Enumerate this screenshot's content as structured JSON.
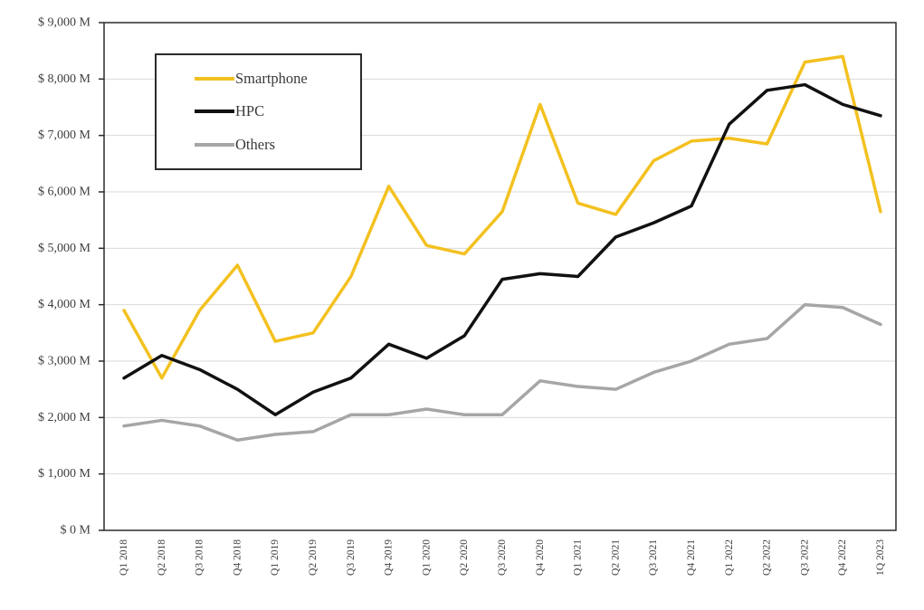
{
  "chart_data": {
    "type": "line",
    "title": "",
    "xlabel": "",
    "ylabel": "",
    "grid": "horizontal",
    "legend_position": "inside-top-left",
    "categories": [
      "Q1 2018",
      "Q2 2018",
      "Q3 2018",
      "Q4 2018",
      "Q1 2019",
      "Q2 2019",
      "Q3 2019",
      "Q4 2019",
      "Q1 2020",
      "Q2 2020",
      "Q3 2020",
      "Q4 2020",
      "Q1 2021",
      "Q2 2021",
      "Q3 2021",
      "Q4 2021",
      "Q1 2022",
      "Q2 2022",
      "Q3 2022",
      "Q4 2022",
      "1Q 2023"
    ],
    "series": [
      {
        "name": "Smartphone",
        "color": "#F3C120",
        "values": [
          3900,
          2700,
          3900,
          4700,
          3350,
          3500,
          4500,
          6100,
          5050,
          4900,
          5650,
          7550,
          5800,
          5600,
          6550,
          6900,
          6950,
          6850,
          8300,
          8400,
          5650
        ]
      },
      {
        "name": "HPC",
        "color": "#111111",
        "values": [
          2700,
          3100,
          2850,
          2500,
          2050,
          2450,
          2700,
          3300,
          3050,
          3450,
          4450,
          4550,
          4500,
          5200,
          5450,
          5750,
          7200,
          7800,
          7900,
          7550,
          7350
        ]
      },
      {
        "name": "Others",
        "color": "#A6A6A6",
        "values": [
          1850,
          1950,
          1850,
          1600,
          1700,
          1750,
          2050,
          2050,
          2150,
          2050,
          2050,
          2650,
          2550,
          2500,
          2800,
          3000,
          3300,
          3400,
          4000,
          3950,
          3650
        ]
      }
    ],
    "y_axis": {
      "min": 0,
      "max": 9000,
      "step": 1000,
      "unit": "M",
      "tick_labels": [
        "$ 0 M",
        "$ 1,000 M",
        "$ 2,000 M",
        "$ 3,000 M",
        "$ 4,000 M",
        "$ 5,000 M",
        "$ 6,000 M",
        "$ 7,000 M",
        "$ 8,000 M",
        "$ 9,000 M"
      ]
    },
    "colors": {
      "gridline": "#D9D9D9",
      "plot_border": "#2b2b2b",
      "tick": "#2b2b2b",
      "axis_text": "#3f3f3f",
      "background": "#ffffff"
    }
  }
}
